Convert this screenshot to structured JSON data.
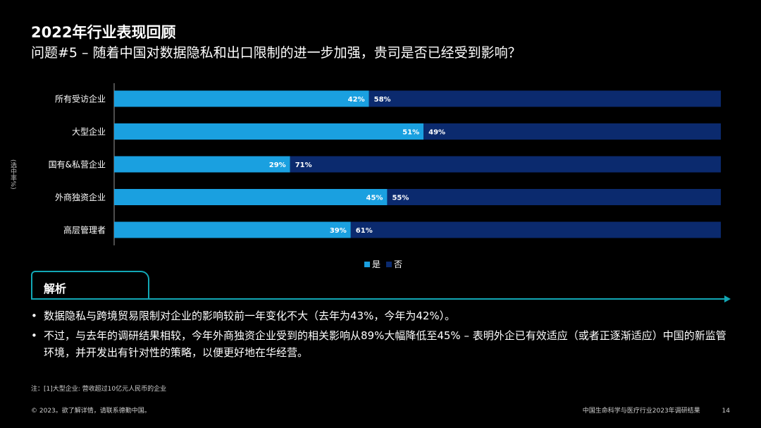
{
  "header": {
    "title": "2022年行业表现回顾",
    "subtitle": "问题#5 – 随着中国对数据隐私和出口限制的进一步加强，贵司是否已经受到影响？"
  },
  "side_label": "(选中率%)",
  "colors": {
    "yes": "#1aa0e0",
    "no": "#0b2a6e",
    "accent": "#12a7b5",
    "background": "#000000"
  },
  "chart_data": {
    "type": "bar",
    "orientation": "horizontal",
    "stacked": true,
    "percent_stacked": true,
    "categories": [
      "所有受访企业",
      "大型企业",
      "国有&私营企业",
      "外商独资企业",
      "高层管理者"
    ],
    "series": [
      {
        "name": "是",
        "values": [
          42,
          51,
          29,
          45,
          39
        ],
        "labels": [
          "42%",
          "51%",
          "29%",
          "45%",
          "39%"
        ]
      },
      {
        "name": "否",
        "values": [
          58,
          49,
          71,
          55,
          61
        ],
        "labels": [
          "58%",
          "49%",
          "71%",
          "55%",
          "61%"
        ]
      }
    ],
    "xlim": [
      0,
      100
    ],
    "legend_position": "bottom-center",
    "grid": false
  },
  "analysis": {
    "label": "解析",
    "bullet_symbol": "•",
    "bullets": [
      "数据隐私与跨境贸易限制对企业的影响较前一年变化不大（去年为43%，今年为42%）。",
      "不过，与去年的调研结果相较，今年外商独资企业受到的相关影响从89%大幅降低至45% – 表明外企已有效适应（或者正逐渐适应）中国的新监管环境，并开发出有针对性的策略，以便更好地在华经营。"
    ]
  },
  "footer": {
    "note": "注：[1]大型企业: 营收超过10亿元人民币的企业",
    "copyright": "© 2023。欲了解详情，请联系德勤中国。",
    "report_name": "中国生命科学与医疗行业2023年调研结果",
    "page_number": "14"
  }
}
